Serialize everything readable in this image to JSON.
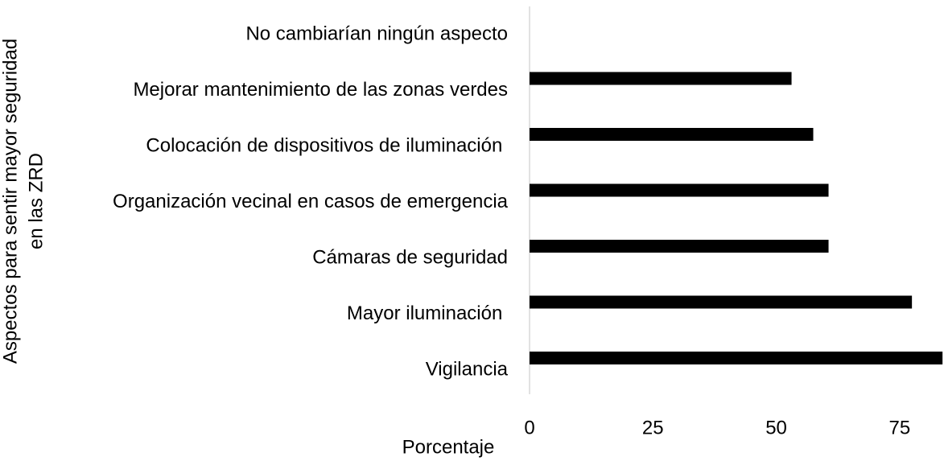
{
  "chart_data": {
    "type": "hbar",
    "ylabel": [
      "Aspectos para sentir mayor seguridad",
      "en las ZRD"
    ],
    "xlabel": "Porcentaje",
    "categories": [
      "No cambiarían ningún aspecto",
      "Mejorar mantenimiento de las zonas verdes",
      "Colocación de dispositivos de iluminación ",
      "Organización vecinal en casos de emergencia",
      "Cámaras de seguridad",
      "Mayor iluminación ",
      "Vigilancia"
    ],
    "values": [
      0,
      53.1,
      57.5,
      60.6,
      60.6,
      77.5,
      83.7
    ],
    "color": "#000000",
    "xlim": [
      0,
      84
    ],
    "xticks": [
      0,
      25,
      50,
      75
    ]
  }
}
